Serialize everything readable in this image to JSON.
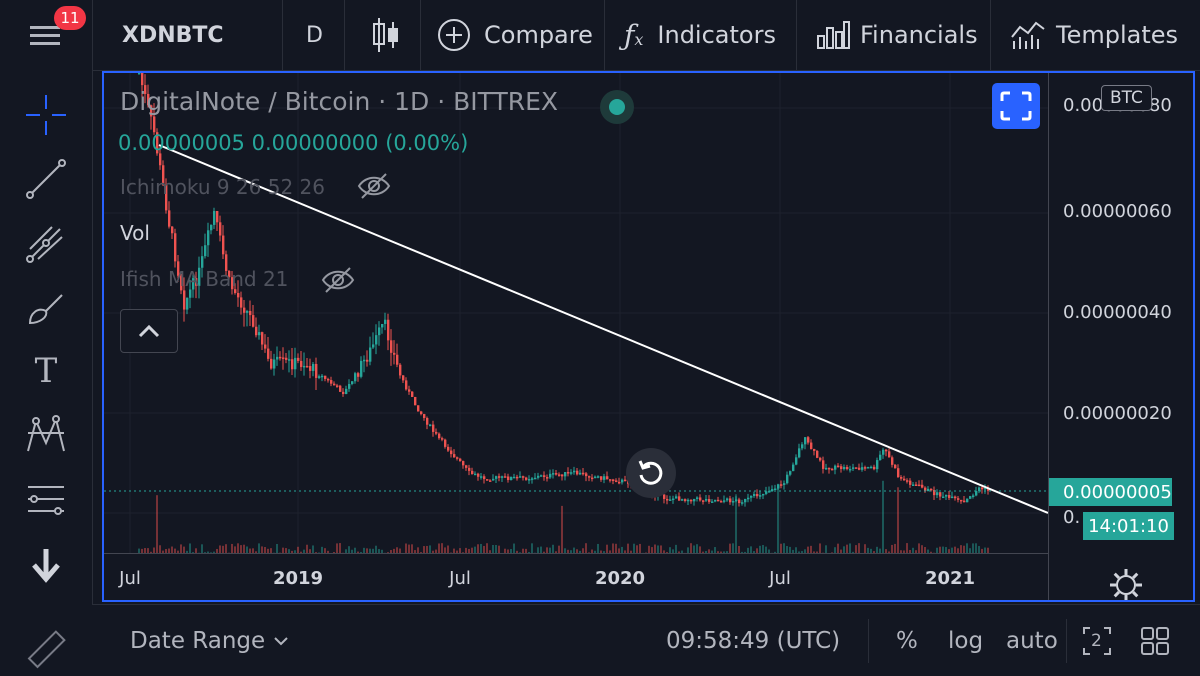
{
  "topbar": {
    "notifications_count": "11",
    "symbol": "XDNBTC",
    "interval": "D",
    "compare_label": "Compare",
    "indicators_label": "Indicators",
    "financials_label": "Financials",
    "templates_label": "Templates"
  },
  "legend": {
    "title": "DigitalNote / Bitcoin · 1D · BITTREX",
    "ohlc": "0.00000005  0.00000000 (0.00%)",
    "indicators": [
      {
        "label": "Ichimoku 9 26 52 26"
      },
      {
        "label": "Vol"
      },
      {
        "label": "Ifish MA Band 21"
      }
    ]
  },
  "price_axis": {
    "currency": "BTC",
    "labels": [
      "0.00000080",
      "0.00000060",
      "0.00000040",
      "0.00000020",
      "0."
    ],
    "current_price": "0.00000005",
    "countdown": "14:01:10"
  },
  "time_axis": {
    "labels": [
      {
        "text": "Jul",
        "bold": false
      },
      {
        "text": "2019",
        "bold": true
      },
      {
        "text": "Jul",
        "bold": false
      },
      {
        "text": "2020",
        "bold": true
      },
      {
        "text": "Jul",
        "bold": false
      },
      {
        "text": "2021",
        "bold": true
      }
    ]
  },
  "bottombar": {
    "date_range_label": "Date Range",
    "clock": "09:58:49 (UTC)",
    "percent_label": "%",
    "log_label": "log",
    "auto_label": "auto",
    "layout_count": "2"
  },
  "colors": {
    "up": "#26a69a",
    "down": "#ef5350",
    "accent": "#2962ff",
    "background": "#131722"
  }
}
